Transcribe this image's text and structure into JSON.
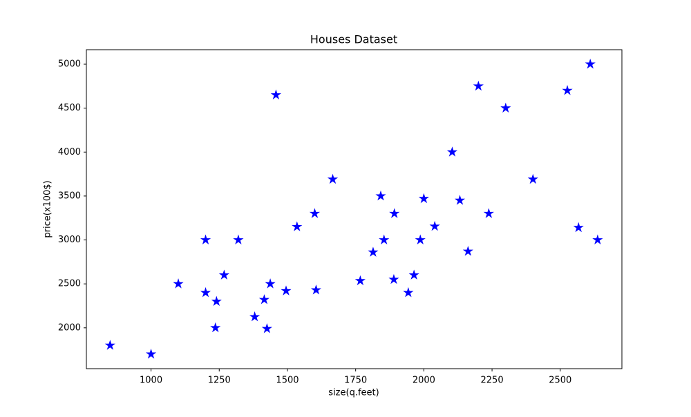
{
  "chart_data": {
    "type": "scatter",
    "title": "Houses Dataset",
    "x_label": "size(q.feet)",
    "y_label": "price(x100$)",
    "color": "#0000ff",
    "marker": "star",
    "x": [
      850,
      1000,
      1100,
      1200,
      1200,
      1240,
      1236,
      1268,
      1320,
      1380,
      1415,
      1425,
      1437,
      1458,
      1495,
      1535,
      1600,
      1605,
      1666,
      1767,
      1814,
      1842,
      1854,
      1890,
      1892,
      1943,
      1964,
      1987,
      2000,
      2040,
      2104,
      2132,
      2162,
      2200,
      2238,
      2300,
      2400,
      2526,
      2567,
      2610,
      2637
    ],
    "y": [
      1800,
      1700,
      2500,
      3000,
      2400,
      2300,
      2000,
      2600,
      3000,
      2125,
      2320,
      1990,
      2500,
      4650,
      2420,
      3150,
      3300,
      2430,
      3690,
      2535,
      2860,
      3500,
      3000,
      2550,
      3300,
      2400,
      2600,
      3000,
      3470,
      3155,
      4000,
      3450,
      2870,
      4750,
      3300,
      4500,
      3690,
      4700,
      3140,
      5000,
      3000
    ],
    "xlim": [
      763,
      2726
    ],
    "ylim": [
      1535,
      5165
    ],
    "xticks": [
      1000,
      1250,
      1500,
      1750,
      2000,
      2250,
      2500
    ],
    "yticks": [
      2000,
      2500,
      3000,
      3500,
      4000,
      4500,
      5000
    ]
  }
}
